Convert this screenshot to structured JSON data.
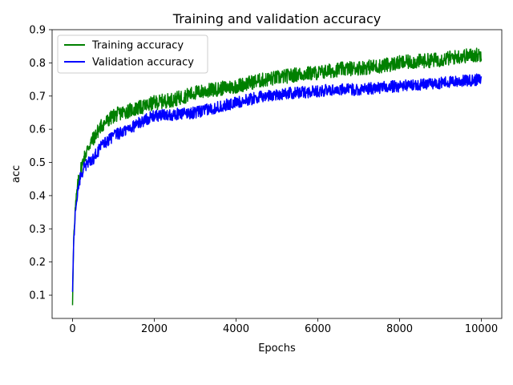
{
  "chart_data": {
    "type": "line",
    "title": "Training and validation accuracy",
    "xlabel": "Epochs",
    "ylabel": "acc",
    "xlim": [
      -500,
      10500
    ],
    "ylim": [
      0.03,
      0.9
    ],
    "xticks": [
      0,
      2000,
      4000,
      6000,
      8000,
      10000
    ],
    "yticks": [
      0.1,
      0.2,
      0.3,
      0.4,
      0.5,
      0.6,
      0.7,
      0.8,
      0.9
    ],
    "grid": false,
    "legend_position": "upper-left",
    "series": [
      {
        "name": "Training accuracy",
        "color": "#008000",
        "x": [
          0,
          10,
          30,
          60,
          100,
          150,
          200,
          300,
          400,
          500,
          600,
          700,
          800,
          1000,
          1200,
          1500,
          1800,
          2000,
          2500,
          3000,
          3500,
          4000,
          4500,
          5000,
          5500,
          6000,
          6500,
          7000,
          7500,
          8000,
          8500,
          9000,
          9500,
          10000
        ],
        "y": [
          0.07,
          0.15,
          0.28,
          0.35,
          0.4,
          0.45,
          0.48,
          0.52,
          0.55,
          0.57,
          0.59,
          0.61,
          0.62,
          0.64,
          0.65,
          0.66,
          0.67,
          0.68,
          0.69,
          0.71,
          0.72,
          0.73,
          0.745,
          0.755,
          0.765,
          0.77,
          0.78,
          0.785,
          0.79,
          0.8,
          0.805,
          0.81,
          0.82,
          0.825
        ],
        "noise": 0.022
      },
      {
        "name": "Validation accuracy",
        "color": "#0000ff",
        "x": [
          0,
          10,
          30,
          60,
          100,
          150,
          200,
          300,
          400,
          500,
          600,
          700,
          800,
          1000,
          1200,
          1500,
          1800,
          2000,
          2500,
          3000,
          3500,
          4000,
          4500,
          5000,
          5500,
          6000,
          6500,
          7000,
          7500,
          8000,
          8500,
          9000,
          9500,
          10000
        ],
        "y": [
          0.11,
          0.17,
          0.27,
          0.33,
          0.38,
          0.43,
          0.46,
          0.49,
          0.5,
          0.51,
          0.53,
          0.55,
          0.56,
          0.58,
          0.59,
          0.61,
          0.63,
          0.64,
          0.645,
          0.65,
          0.665,
          0.68,
          0.695,
          0.705,
          0.71,
          0.715,
          0.72,
          0.72,
          0.725,
          0.73,
          0.735,
          0.74,
          0.745,
          0.75
        ],
        "noise": 0.018
      }
    ]
  }
}
